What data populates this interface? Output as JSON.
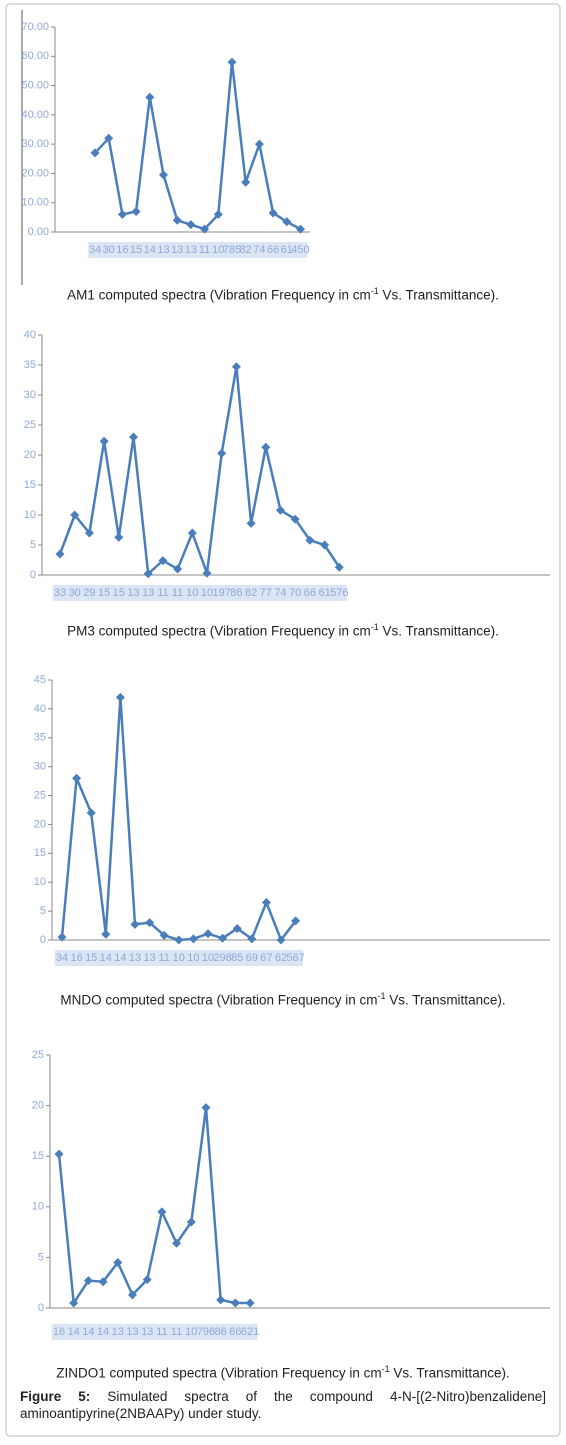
{
  "chart_data": [
    {
      "type": "line",
      "categories": [
        "34",
        "30",
        "16",
        "15",
        "14",
        "13",
        "13",
        "13",
        "11",
        "10",
        "785",
        "82",
        "74",
        "66",
        "61",
        "450"
      ],
      "values": [
        27,
        32,
        6,
        7,
        46,
        19.5,
        4,
        2.5,
        1,
        6,
        58,
        17,
        30,
        6.5,
        3.5,
        1
      ],
      "color": "#4a7ebb",
      "ylim": [
        0,
        70
      ],
      "yticks": [
        {
          "value": 0,
          "label": "0.00"
        },
        {
          "value": 10,
          "label": "10.00"
        },
        {
          "value": 20,
          "label": "20.00"
        },
        {
          "value": 30,
          "label": "30.00"
        },
        {
          "value": 40,
          "label": "40.00"
        },
        {
          "value": 50,
          "label": "50.00"
        },
        {
          "value": 60,
          "label": "60.00"
        },
        {
          "value": 70,
          "label": "70.00"
        }
      ],
      "caption": {
        "text": "AM1 computed spectra (Vibration Frequency in cm",
        "sup": "-1",
        "rest": " Vs. Transmittance)."
      }
    },
    {
      "type": "line",
      "categories": [
        "33",
        "30",
        "29",
        "15",
        "15",
        "13",
        "13",
        "11",
        "11",
        "10",
        "10",
        "197",
        "86",
        "82",
        "77",
        "74",
        "70",
        "66",
        "61",
        "576"
      ],
      "values": [
        3.5,
        10,
        7,
        22.3,
        6.3,
        23,
        0.2,
        2.4,
        1,
        7,
        0.3,
        20.3,
        34.7,
        8.6,
        21.3,
        10.8,
        9.3,
        5.8,
        5,
        1.3
      ],
      "color": "#4a7ebb",
      "ylim": [
        0,
        40
      ],
      "yticks": [
        0,
        5,
        10,
        15,
        20,
        25,
        30,
        35,
        40
      ],
      "caption": {
        "text": "PM3 computed spectra (Vibration Frequency in cm",
        "sup": "-1",
        "rest": " Vs. Transmittance)."
      }
    },
    {
      "type": "line",
      "categories": [
        "34",
        "16",
        "15",
        "14",
        "14",
        "13",
        "13",
        "11",
        "10",
        "10",
        "10",
        "298",
        "85",
        "69",
        "67",
        "62",
        "567"
      ],
      "values": [
        0.5,
        28,
        22,
        1,
        42,
        2.7,
        3,
        0.8,
        0,
        0.2,
        1.1,
        0.3,
        2,
        0.2,
        6.5,
        0,
        3.3
      ],
      "color": "#4a7ebb",
      "ylim": [
        0,
        45
      ],
      "yticks": [
        0,
        5,
        10,
        15,
        20,
        25,
        30,
        35,
        40,
        45
      ],
      "caption": {
        "text": "MNDO computed spectra (Vibration Frequency in cm",
        "sup": "-1",
        "rest": " Vs. Transmittance)."
      }
    },
    {
      "type": "line",
      "categories": [
        "16",
        "14",
        "14",
        "14",
        "13",
        "13",
        "13",
        "11",
        "11",
        "10",
        "796",
        "86",
        "66",
        "621"
      ],
      "values": [
        15.2,
        0.5,
        2.7,
        2.6,
        4.5,
        1.3,
        2.8,
        9.5,
        6.4,
        8.5,
        19.8,
        0.8,
        0.5,
        0.5
      ],
      "color": "#4a7ebb",
      "ylim": [
        0,
        25
      ],
      "yticks": [
        0,
        5,
        10,
        15,
        20,
        25
      ],
      "caption": {
        "text": "ZINDO1 computed spectra (Vibration Frequency in cm",
        "sup": "-1",
        "rest": " Vs. Transmittance)."
      }
    }
  ],
  "figure_caption": {
    "label": "Figure 5:",
    "text": " Simulated spectra of the compound 4-N-[(2-Nitro)benzalidene] aminoantipyrine(2NBAAPy) under study."
  }
}
